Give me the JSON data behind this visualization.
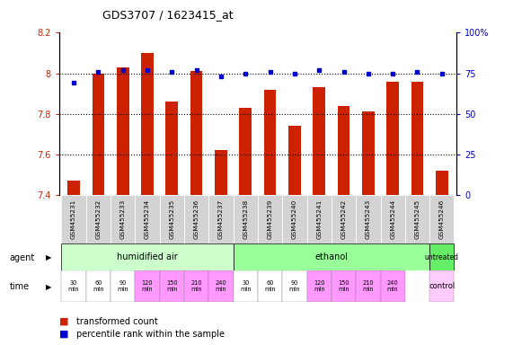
{
  "title": "GDS3707 / 1623415_at",
  "samples": [
    "GSM455231",
    "GSM455232",
    "GSM455233",
    "GSM455234",
    "GSM455235",
    "GSM455236",
    "GSM455237",
    "GSM455238",
    "GSM455239",
    "GSM455240",
    "GSM455241",
    "GSM455242",
    "GSM455243",
    "GSM455244",
    "GSM455245",
    "GSM455246"
  ],
  "red_values": [
    7.47,
    8.0,
    8.03,
    8.1,
    7.86,
    8.01,
    7.62,
    7.83,
    7.92,
    7.74,
    7.93,
    7.84,
    7.81,
    7.96,
    7.96,
    7.52
  ],
  "blue_values": [
    69,
    76,
    77,
    77,
    76,
    77,
    73,
    75,
    76,
    75,
    77,
    76,
    75,
    75,
    76,
    75
  ],
  "ylim_left": [
    7.4,
    8.2
  ],
  "ylim_right": [
    0,
    100
  ],
  "yticks_left": [
    7.4,
    7.6,
    7.8,
    8.0,
    8.2
  ],
  "yticks_right": [
    0,
    25,
    50,
    75,
    100
  ],
  "ytick_labels_left": [
    "7.4",
    "7.6",
    "7.8",
    "8",
    "8.2"
  ],
  "ytick_labels_right": [
    "0",
    "25",
    "50",
    "75",
    "100%"
  ],
  "bar_color": "#cc2200",
  "dot_color": "#0000cc",
  "humidified_color": "#ccffcc",
  "ethanol_color": "#99ff99",
  "untreated_color": "#66ee66",
  "time_white": "#ffffff",
  "time_pink": "#ff99ff",
  "control_color": "#ffccff",
  "sample_bg": "#d3d3d3",
  "tick_color_left": "#cc2200",
  "tick_color_right": "#0000cc",
  "time_labels": [
    "30\nmin",
    "60\nmin",
    "90\nmin",
    "120\nmin",
    "150\nmin",
    "210\nmin",
    "240\nmin"
  ],
  "time_colors": [
    "#ffffff",
    "#ffffff",
    "#ffffff",
    "#ff99ff",
    "#ff99ff",
    "#ff99ff",
    "#ff99ff"
  ]
}
